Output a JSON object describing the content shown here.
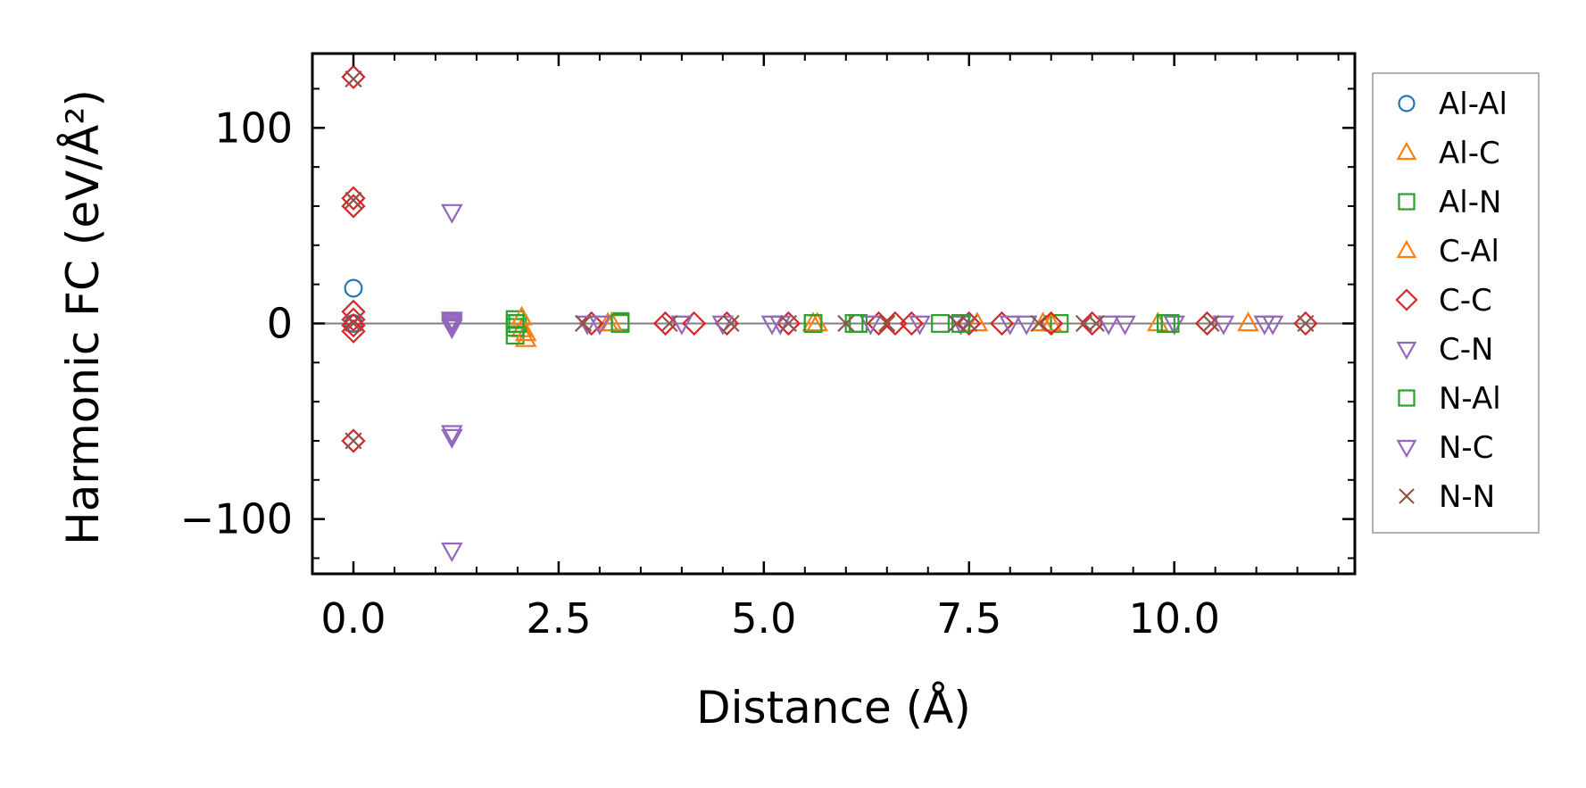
{
  "chart_data": {
    "type": "scatter",
    "title": "",
    "xlabel": "Distance (Å)",
    "ylabel": "Harmonic FC (eV/Å²)",
    "xlim": [
      -0.5,
      12.2
    ],
    "ylim": [
      -128,
      138
    ],
    "xticks": [
      0.0,
      2.5,
      5.0,
      7.5,
      10.0
    ],
    "xtick_labels": [
      "0.0",
      "2.5",
      "5.0",
      "7.5",
      "10.0"
    ],
    "yticks": [
      -100,
      0,
      100
    ],
    "ytick_labels": [
      "−100",
      "0",
      "100"
    ],
    "x_minor_step": 0.5,
    "y_minor_step": 20,
    "zero_line": true,
    "grid": false,
    "legend_position": "outside-right",
    "series": [
      {
        "name": "Al-Al",
        "marker": "circle",
        "color": "#1f77b4",
        "points": [
          [
            0,
            18
          ],
          [
            0,
            0
          ]
        ]
      },
      {
        "name": "Al-C",
        "marker": "triangle-up",
        "color": "#ff7f0e",
        "points": [
          [
            2.05,
            -3
          ],
          [
            2.1,
            -8
          ],
          [
            3.1,
            0
          ],
          [
            5.6,
            0
          ],
          [
            8.4,
            0
          ],
          [
            9.8,
            0
          ],
          [
            10.9,
            0
          ]
        ]
      },
      {
        "name": "Al-N",
        "marker": "square",
        "color": "#2ca02c",
        "points": [
          [
            1.97,
            2
          ],
          [
            1.97,
            -2
          ],
          [
            1.97,
            -6
          ],
          [
            2.0,
            0
          ],
          [
            3.25,
            1
          ],
          [
            5.6,
            0
          ],
          [
            6.15,
            0
          ],
          [
            7.15,
            0
          ],
          [
            8.6,
            0
          ],
          [
            9.9,
            0
          ]
        ]
      },
      {
        "name": "C-Al",
        "marker": "triangle-up",
        "color": "#ff7f0e",
        "points": [
          [
            2.05,
            3
          ],
          [
            2.1,
            -5
          ],
          [
            3.15,
            0
          ],
          [
            5.65,
            0
          ],
          [
            7.6,
            0
          ],
          [
            8.5,
            0
          ]
        ]
      },
      {
        "name": "C-C",
        "marker": "diamond",
        "color": "#d62728",
        "points": [
          [
            0,
            126
          ],
          [
            0,
            64
          ],
          [
            0,
            60
          ],
          [
            0,
            6
          ],
          [
            0,
            2
          ],
          [
            0,
            -1
          ],
          [
            0,
            -4
          ],
          [
            0,
            -60
          ],
          [
            2.9,
            0
          ],
          [
            3.8,
            0
          ],
          [
            4.15,
            0
          ],
          [
            4.55,
            0
          ],
          [
            5.3,
            0
          ],
          [
            6.4,
            0
          ],
          [
            6.6,
            0
          ],
          [
            6.8,
            0
          ],
          [
            7.5,
            0
          ],
          [
            7.9,
            0
          ],
          [
            8.5,
            0
          ],
          [
            9.0,
            0
          ],
          [
            10.4,
            0
          ],
          [
            11.6,
            0
          ]
        ]
      },
      {
        "name": "C-N",
        "marker": "triangle-down",
        "color": "#9467bd",
        "points": [
          [
            1.2,
            57
          ],
          [
            1.2,
            2
          ],
          [
            1.2,
            0
          ],
          [
            1.2,
            -2
          ],
          [
            1.2,
            -56
          ],
          [
            1.2,
            -58
          ],
          [
            1.2,
            -116
          ],
          [
            2.85,
            0
          ],
          [
            4.0,
            0
          ],
          [
            5.2,
            0
          ],
          [
            6.3,
            0
          ],
          [
            7.4,
            0
          ],
          [
            8.2,
            0
          ],
          [
            9.2,
            0
          ],
          [
            10.0,
            0
          ],
          [
            11.1,
            0
          ]
        ]
      },
      {
        "name": "N-Al",
        "marker": "square",
        "color": "#2ca02c",
        "points": [
          [
            1.97,
            0
          ],
          [
            3.25,
            0
          ],
          [
            5.6,
            0
          ],
          [
            6.1,
            0
          ],
          [
            7.4,
            0
          ],
          [
            9.95,
            0
          ]
        ]
      },
      {
        "name": "N-C",
        "marker": "triangle-down",
        "color": "#9467bd",
        "points": [
          [
            1.2,
            1
          ],
          [
            1.2,
            -1
          ],
          [
            3.0,
            0
          ],
          [
            4.5,
            0
          ],
          [
            5.1,
            0
          ],
          [
            6.9,
            0
          ],
          [
            8.0,
            0
          ],
          [
            9.4,
            0
          ],
          [
            10.6,
            0
          ],
          [
            11.2,
            0
          ]
        ]
      },
      {
        "name": "N-N",
        "marker": "x",
        "color": "#8c564b",
        "points": [
          [
            0,
            125
          ],
          [
            0,
            63
          ],
          [
            0,
            0
          ],
          [
            0,
            -60
          ],
          [
            2.8,
            0
          ],
          [
            3.85,
            0
          ],
          [
            4.6,
            0
          ],
          [
            5.3,
            0
          ],
          [
            6.0,
            0
          ],
          [
            6.5,
            0
          ],
          [
            7.35,
            0
          ],
          [
            7.5,
            0
          ],
          [
            8.35,
            0
          ],
          [
            8.9,
            0
          ],
          [
            9.05,
            0
          ],
          [
            10.45,
            0
          ],
          [
            11.6,
            0
          ]
        ]
      }
    ]
  }
}
